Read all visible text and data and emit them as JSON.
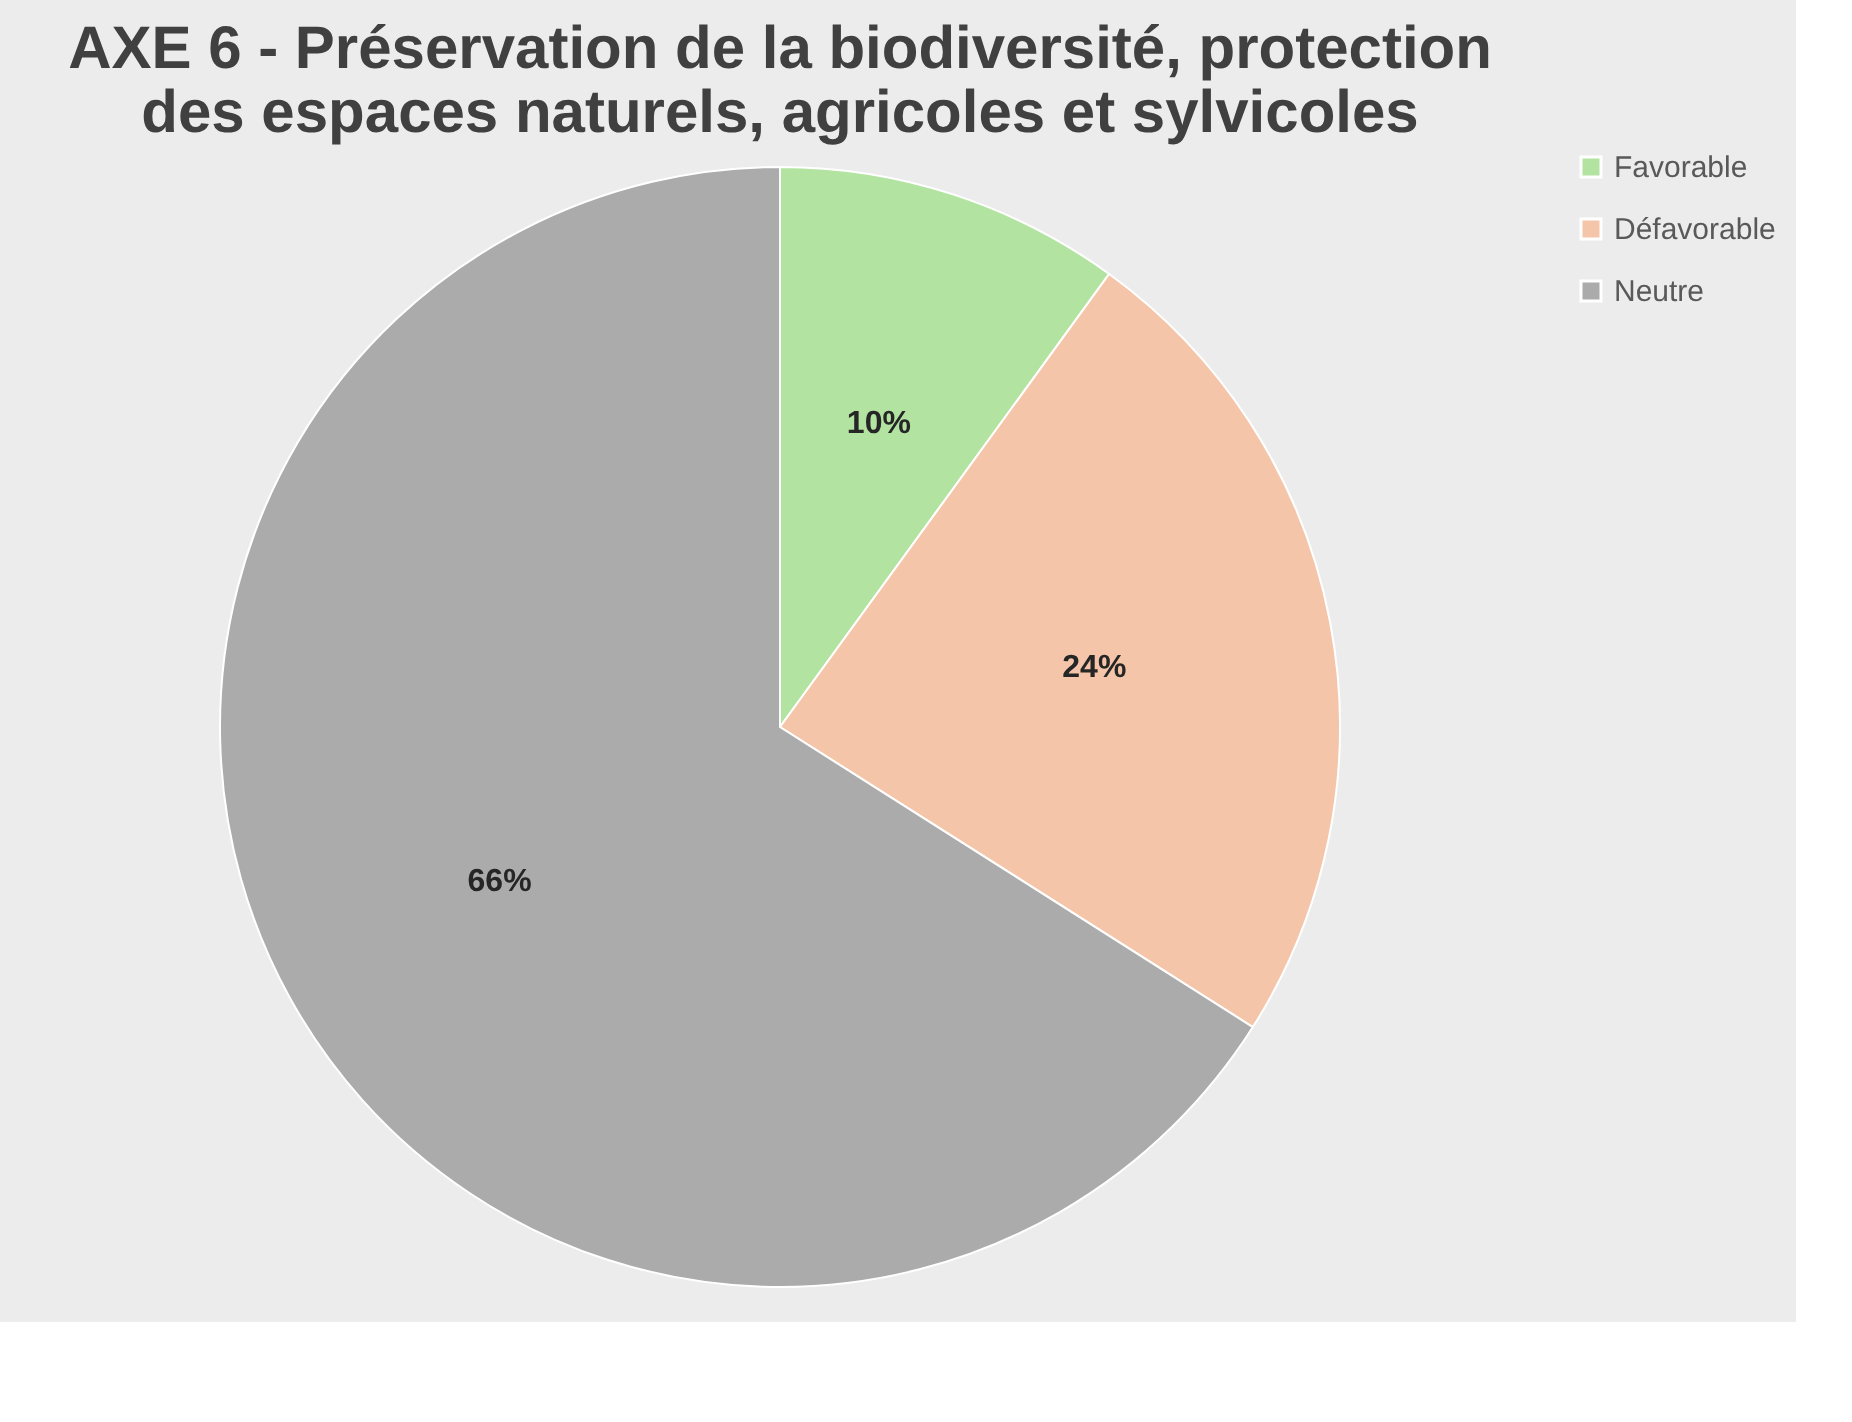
{
  "chart_data": {
    "type": "pie",
    "title": "AXE 6 - Préservation de la biodiversité, protection des espaces naturels, agricoles et sylvicoles",
    "categories": [
      "Favorable",
      "Défavorable",
      "Neutre"
    ],
    "values": [
      10,
      24,
      66
    ],
    "value_labels": [
      "10%",
      "24%",
      "66%"
    ],
    "colors": [
      "#b3e3a0",
      "#f5c5a9",
      "#ababab"
    ],
    "legend": "right"
  }
}
